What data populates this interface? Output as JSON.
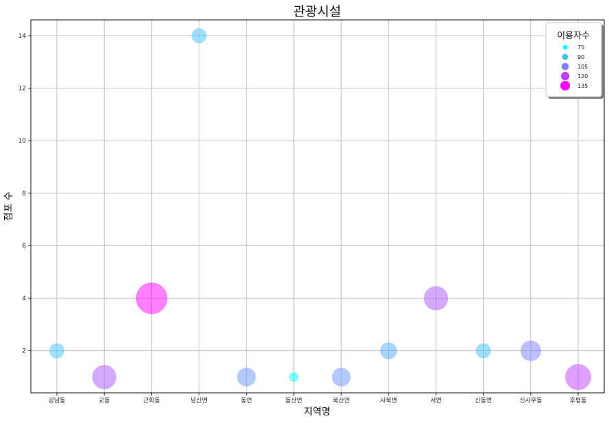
{
  "chart_data": {
    "type": "scatter",
    "title": "관광시설",
    "xlabel": "지역명",
    "ylabel": "점포 수",
    "categories": [
      "강남동",
      "교동",
      "근화동",
      "남산면",
      "동면",
      "동산면",
      "북산면",
      "사북면",
      "서면",
      "신동면",
      "신사우동",
      "후평동"
    ],
    "values": [
      2,
      1,
      4,
      14,
      1,
      1,
      1,
      2,
      4,
      2,
      2,
      1
    ],
    "bubble_size": [
      90,
      115,
      135,
      90,
      100,
      75,
      100,
      95,
      115,
      90,
      105,
      120
    ],
    "size_label": "이용자수",
    "ylim": [
      0.4,
      14.6
    ],
    "yticks": [
      2,
      4,
      6,
      8,
      10,
      12,
      14
    ],
    "grid": true,
    "colormap": "cool",
    "alpha": 0.5,
    "legend": {
      "title": "이용자수",
      "placement": "top-right",
      "entries": [
        {
          "label": "75",
          "value": 75
        },
        {
          "label": "90",
          "value": 90
        },
        {
          "label": "105",
          "value": 105
        },
        {
          "label": "120",
          "value": 120
        },
        {
          "label": "135",
          "value": 135
        }
      ]
    }
  }
}
